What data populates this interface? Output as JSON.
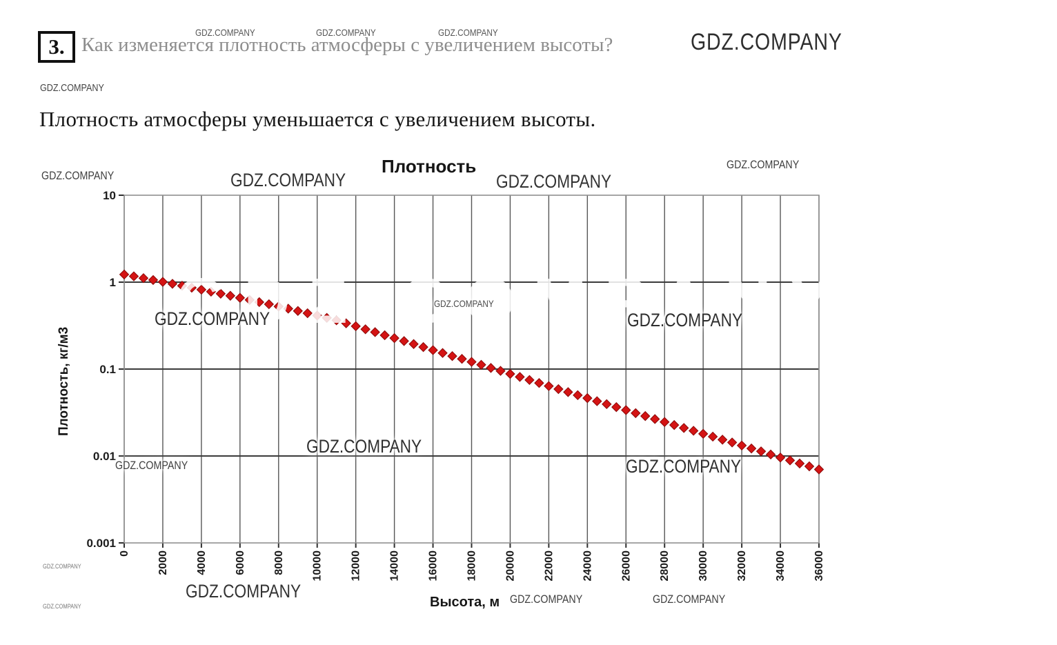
{
  "question": {
    "number": "3.",
    "title": "Как изменяется плотность атмосферы с увеличением высоты?"
  },
  "answer": {
    "text": "Плотность атмосферы уменьшается с увеличением высоты."
  },
  "watermark_text": "GDZ.COMPANY",
  "chart_data": {
    "type": "scatter",
    "title": "Плотность",
    "xlabel": "Высота, м",
    "ylabel": "Плотность, кг/м3",
    "y_scale": "log",
    "grid": true,
    "legend": "none",
    "xlim": [
      0,
      36000
    ],
    "ylim": [
      0.001,
      10
    ],
    "x_ticks": [
      "0",
      "2000",
      "4000",
      "6000",
      "8000",
      "10000",
      "12000",
      "14000",
      "16000",
      "18000",
      "20000",
      "22000",
      "24000",
      "26000",
      "28000",
      "30000",
      "32000",
      "34000",
      "36000"
    ],
    "y_ticks": [
      "10",
      "1",
      "0.1",
      "0.01",
      "0.001"
    ],
    "marker": "diamond",
    "marker_color": "#d41414",
    "marker_edge_color": "#8a0808",
    "x": [
      0,
      500,
      1000,
      1500,
      2000,
      2500,
      3000,
      3500,
      4000,
      4500,
      5000,
      5500,
      6000,
      6500,
      7000,
      7500,
      8000,
      8500,
      9000,
      9500,
      10000,
      10500,
      11000,
      11500,
      12000,
      12500,
      13000,
      13500,
      14000,
      14500,
      15000,
      15500,
      16000,
      16500,
      17000,
      17500,
      18000,
      18500,
      19000,
      19500,
      20000,
      20500,
      21000,
      21500,
      22000,
      22500,
      23000,
      23500,
      24000,
      24500,
      25000,
      25500,
      26000,
      26500,
      27000,
      27500,
      28000,
      28500,
      29000,
      29500,
      30000,
      30500,
      31000,
      31500,
      32000,
      32500,
      33000,
      33500,
      34000,
      34500,
      35000,
      35500,
      36000
    ],
    "values": [
      1.225,
      1.167,
      1.112,
      1.058,
      1.007,
      0.957,
      0.909,
      0.863,
      0.819,
      0.777,
      0.736,
      0.697,
      0.66,
      0.624,
      0.589,
      0.557,
      0.525,
      0.495,
      0.466,
      0.439,
      0.413,
      0.388,
      0.364,
      0.336,
      0.311,
      0.287,
      0.266,
      0.245,
      0.227,
      0.21,
      0.194,
      0.179,
      0.165,
      0.153,
      0.141,
      0.131,
      0.121,
      0.112,
      0.103,
      0.0953,
      0.088,
      0.0812,
      0.0749,
      0.0691,
      0.0637,
      0.0588,
      0.0543,
      0.0501,
      0.0463,
      0.0427,
      0.0395,
      0.0365,
      0.0337,
      0.0311,
      0.0288,
      0.0266,
      0.0246,
      0.0227,
      0.021,
      0.0195,
      0.018,
      0.0167,
      0.0154,
      0.0143,
      0.0132,
      0.0122,
      0.0113,
      0.0104,
      0.0096,
      0.0089,
      0.0082,
      0.0076,
      0.007
    ]
  }
}
